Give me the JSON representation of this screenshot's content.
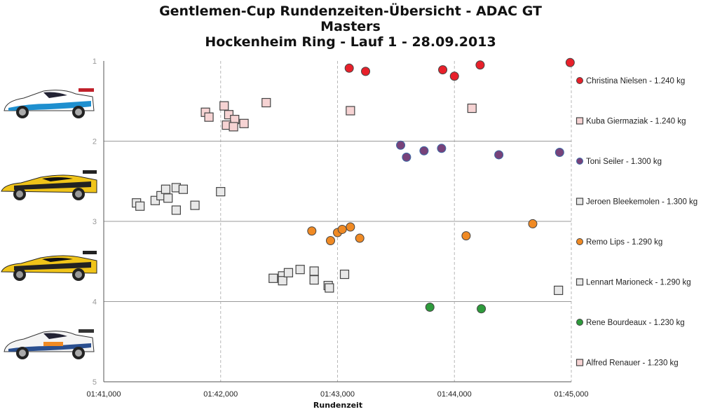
{
  "chart_data": {
    "type": "scatter",
    "title_lines": [
      "Gentlemen-Cup Rundenzeiten-Übersicht - ADAC GT",
      "Masters",
      "Hockenheim Ring - Lauf 1 - 28.09.2013"
    ],
    "xlabel": "Rundenzeit",
    "ylabel": "",
    "xlim": [
      101,
      105
    ],
    "ylim": [
      1,
      5
    ],
    "y_inverted": true,
    "x_tick_values": [
      101,
      102,
      103,
      104,
      105
    ],
    "x_tick_labels": [
      "01:41,000",
      "01:42,000",
      "01:43,000",
      "01:44,000",
      "01:45,000"
    ],
    "y_tick_values": [
      1,
      2,
      3,
      4,
      5
    ],
    "y_tick_labels": [
      "1",
      "2",
      "3",
      "4",
      "5"
    ],
    "grid": "vertical dashed at each x tick, horizontal solid at y ticks",
    "legend_position": "right",
    "series": [
      {
        "name": "Christina Nielsen - 1.240 kg",
        "marker": "circle",
        "color": "#e8202a",
        "points": [
          [
            103.1,
            1.09
          ],
          [
            103.24,
            1.13
          ],
          [
            103.9,
            1.11
          ],
          [
            104.0,
            1.19
          ],
          [
            104.22,
            1.05
          ],
          [
            104.99,
            1.02
          ]
        ]
      },
      {
        "name": "Kuba Giermaziak - 1.240 kg",
        "marker": "square",
        "color": "#f6d3d3",
        "points": [
          [
            101.87,
            1.64
          ],
          [
            101.9,
            1.7
          ],
          [
            102.03,
            1.56
          ],
          [
            102.07,
            1.67
          ],
          [
            102.12,
            1.73
          ],
          [
            102.05,
            1.8
          ],
          [
            102.11,
            1.82
          ],
          [
            102.2,
            1.78
          ],
          [
            102.39,
            1.52
          ],
          [
            103.11,
            1.62
          ],
          [
            104.15,
            1.59
          ]
        ]
      },
      {
        "name": "Toni Seiler - 1.300 kg",
        "marker": "circle",
        "color": "#77427a",
        "edge": "#3b6aa5",
        "points": [
          [
            103.54,
            2.05
          ],
          [
            103.59,
            2.2
          ],
          [
            103.74,
            2.12
          ],
          [
            103.89,
            2.09
          ],
          [
            104.38,
            2.17
          ],
          [
            104.9,
            2.14
          ]
        ]
      },
      {
        "name": "Jeroen Bleekemolen - 1.300 kg",
        "marker": "square",
        "color": "#e8e8e8",
        "points": [
          [
            101.28,
            2.77
          ],
          [
            101.31,
            2.81
          ],
          [
            101.44,
            2.74
          ],
          [
            101.49,
            2.68
          ],
          [
            101.53,
            2.6
          ],
          [
            101.55,
            2.71
          ],
          [
            101.62,
            2.58
          ],
          [
            101.68,
            2.6
          ],
          [
            101.62,
            2.86
          ],
          [
            101.78,
            2.8
          ],
          [
            102.0,
            2.63
          ]
        ]
      },
      {
        "name": "Remo Lips - 1.290 kg",
        "marker": "circle",
        "color": "#f08a24",
        "points": [
          [
            102.78,
            3.12
          ],
          [
            102.94,
            3.24
          ],
          [
            103.0,
            3.14
          ],
          [
            103.04,
            3.1
          ],
          [
            103.11,
            3.07
          ],
          [
            103.19,
            3.21
          ],
          [
            104.1,
            3.18
          ],
          [
            104.67,
            3.03
          ]
        ]
      },
      {
        "name": "Lennart Marioneck - 1.290 kg",
        "marker": "square",
        "color": "#e8e8e8",
        "points": [
          [
            102.45,
            3.71
          ],
          [
            102.53,
            3.68
          ],
          [
            102.53,
            3.74
          ],
          [
            102.58,
            3.64
          ],
          [
            102.68,
            3.6
          ],
          [
            102.8,
            3.62
          ],
          [
            102.8,
            3.73
          ],
          [
            102.92,
            3.8
          ],
          [
            102.93,
            3.83
          ],
          [
            103.06,
            3.66
          ],
          [
            104.89,
            3.86
          ]
        ]
      },
      {
        "name": "Rene Bourdeaux - 1.230 kg",
        "marker": "circle",
        "color": "#2e9b3c",
        "points": [
          [
            103.79,
            4.07
          ],
          [
            104.23,
            4.09
          ]
        ]
      },
      {
        "name": "Alfred Renauer - 1.230 kg",
        "marker": "square",
        "color": "#f6d3d3",
        "points": []
      }
    ]
  }
}
